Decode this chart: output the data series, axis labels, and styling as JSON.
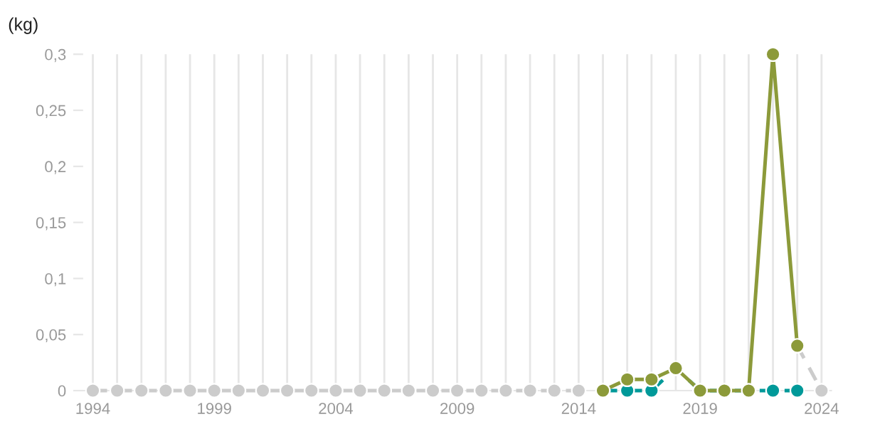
{
  "chart_data": {
    "type": "line",
    "ylabel": "(kg)",
    "xlim": [
      1993.6,
      2024.4
    ],
    "ylim": [
      0,
      0.3
    ],
    "xticks": [
      1994,
      {
        "value": 1995,
        "label": null
      },
      {
        "value": 1996,
        "label": null
      },
      {
        "value": 1997,
        "label": null
      },
      {
        "value": 1998,
        "label": null
      },
      1999,
      {
        "value": 2000,
        "label": null
      },
      {
        "value": 2001,
        "label": null
      },
      {
        "value": 2002,
        "label": null
      },
      {
        "value": 2003,
        "label": null
      },
      2004,
      {
        "value": 2005,
        "label": null
      },
      {
        "value": 2006,
        "label": null
      },
      {
        "value": 2007,
        "label": null
      },
      {
        "value": 2008,
        "label": null
      },
      2009,
      {
        "value": 2010,
        "label": null
      },
      {
        "value": 2011,
        "label": null
      },
      {
        "value": 2012,
        "label": null
      },
      {
        "value": 2013,
        "label": null
      },
      2014,
      {
        "value": 2015,
        "label": null
      },
      {
        "value": 2016,
        "label": null
      },
      {
        "value": 2017,
        "label": null
      },
      {
        "value": 2018,
        "label": null
      },
      2019,
      {
        "value": 2020,
        "label": null
      },
      {
        "value": 2021,
        "label": null
      },
      {
        "value": 2022,
        "label": null
      },
      {
        "value": 2023,
        "label": null
      },
      2024
    ],
    "yticks": [
      0,
      {
        "value": 0.05,
        "label": "0,05"
      },
      {
        "value": 0.1,
        "label": "0,1"
      },
      {
        "value": 0.15,
        "label": "0,15"
      },
      {
        "value": 0.2,
        "label": "0,2"
      },
      {
        "value": 0.25,
        "label": "0,25"
      },
      {
        "value": 0.3,
        "label": "0,3"
      }
    ],
    "grid": "x",
    "legend": false,
    "marker": "circle",
    "series": [
      {
        "color": "#cccccc",
        "line_style": "dashed",
        "x": [
          1994,
          1995,
          1996,
          1997,
          1998,
          1999,
          2000,
          2001,
          2002,
          2003,
          2004,
          2005,
          2006,
          2007,
          2008,
          2009,
          2010,
          2011,
          2012,
          2013,
          2014,
          2015,
          2023,
          2024
        ],
        "values": [
          0,
          0,
          0,
          0,
          0,
          0,
          0,
          0,
          0,
          0,
          0,
          0,
          0,
          0,
          0,
          0,
          0,
          0,
          0,
          0,
          0,
          null,
          0.04,
          0
        ]
      },
      {
        "color": "#009999",
        "line_style": "dashed",
        "x": [
          2015,
          2016,
          2017,
          2018,
          2019,
          2020,
          2021,
          2022,
          2023
        ],
        "values": [
          0,
          0,
          0,
          0.02,
          0,
          0,
          0,
          0,
          0
        ]
      },
      {
        "color": "#8c9a3a",
        "line_style": "solid",
        "x": [
          2015,
          2016,
          2017,
          2018,
          2019,
          2020,
          2021,
          2022,
          2023
        ],
        "values": [
          0,
          0.01,
          0.01,
          0.02,
          0,
          0,
          0,
          0.3,
          0.04
        ]
      }
    ]
  }
}
